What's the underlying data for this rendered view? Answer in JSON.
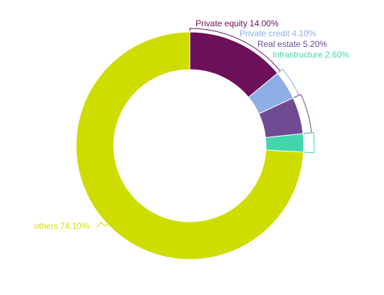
{
  "chart_data": {
    "type": "pie",
    "variant": "donut",
    "title": "",
    "slices": [
      {
        "name": "Private equity",
        "value": 14.0,
        "label": "Private equity 14.00%",
        "color": "#6e0f59"
      },
      {
        "name": "Private credit",
        "value": 4.1,
        "label": "Private credit 4.10%",
        "color": "#8daee6"
      },
      {
        "name": "Real estate",
        "value": 5.2,
        "label": "Real estate 5.20%",
        "color": "#6f4b93"
      },
      {
        "name": "Infrastructure",
        "value": 2.6,
        "label": "Infrastructure 2.60%",
        "color": "#43d6ad"
      },
      {
        "name": "others",
        "value": 74.1,
        "label": "others 74.10%",
        "color": "#cddd00"
      }
    ],
    "start_angle": "12 o'clock",
    "direction": "clockwise",
    "legend": "none",
    "data_labels": "outside with leader lines"
  }
}
